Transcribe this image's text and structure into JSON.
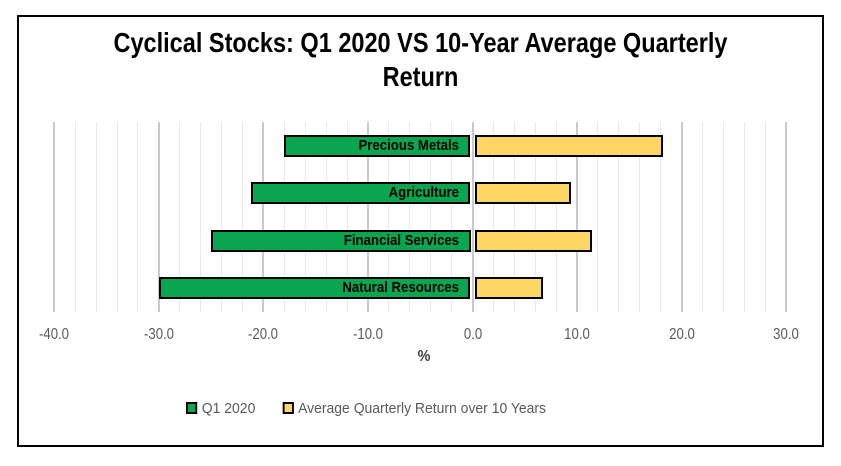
{
  "title": {
    "line1": "Cyclical Stocks: Q1 2020 VS 10-Year Average Quarterly",
    "line2": "Return"
  },
  "colors": {
    "q1_green": "#0AA54F",
    "avg_yellow": "#FFD564",
    "bar_border": "#000000",
    "grid_major": "#C9C9C9",
    "grid_minor": "#E9E9E9",
    "axis_text": "#595959",
    "axis_title_text": "#404040",
    "title_text": "#000000",
    "frame_border": "#000000",
    "background": "#FFFFFF"
  },
  "chart_data": {
    "type": "bar",
    "orientation": "horizontal",
    "title": "Cyclical Stocks: Q1 2020 VS 10-Year Average Quarterly Return",
    "categories": [
      "Precious Metals",
      "Agriculture",
      "Financial Services",
      "Natural Resources"
    ],
    "series": [
      {
        "name": "Q1 2020",
        "color": "#0AA54F",
        "values": [
          -18.0,
          -21.2,
          -25.0,
          -30.0
        ]
      },
      {
        "name": "Average Quarterly Return over 10 Years",
        "color": "#FFD564",
        "values": [
          18.2,
          9.4,
          11.4,
          6.7
        ]
      }
    ],
    "xlabel": "%",
    "ylabel": "",
    "xlim": [
      -40,
      30
    ],
    "x_major_step": 10,
    "x_minor_step": 2,
    "tick_labels": [
      "-40.0",
      "-30.0",
      "-20.0",
      "-10.0",
      "0.0",
      "10.0",
      "20.0",
      "30.0"
    ],
    "grid": true,
    "legend_position": "bottom",
    "category_labels_inside_bars": true
  },
  "legend": {
    "items": [
      {
        "label": "Q1 2020",
        "color": "#0AA54F"
      },
      {
        "label": "Average Quarterly Return over 10 Years",
        "color": "#FFD564"
      }
    ]
  }
}
